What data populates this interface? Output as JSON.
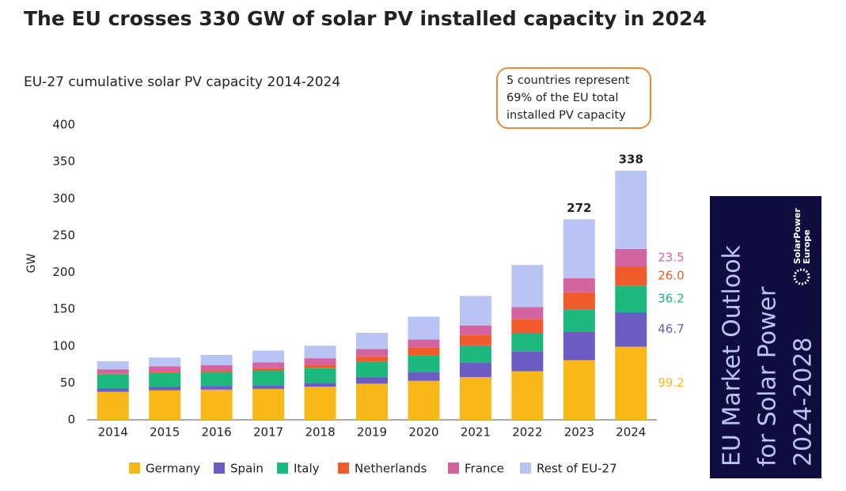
{
  "chart_data": {
    "type": "stacked_bar",
    "title": "The EU crosses 330 GW of solar PV installed capacity in 2024",
    "subtitle": "EU-27 cumulative solar PV capacity 2014-2024",
    "y_label": "GW",
    "annotation": [
      "5 countries represent",
      "69% of the EU total",
      "installed PV capacity"
    ],
    "categories": [
      "2014",
      "2015",
      "2016",
      "2017",
      "2018",
      "2019",
      "2020",
      "2021",
      "2022",
      "2023",
      "2024"
    ],
    "series": [
      {
        "name": "Germany",
        "color": "#f9b81a",
        "values": [
          38,
          40,
          41,
          42,
          45,
          49,
          53,
          58,
          66,
          81,
          99.2
        ],
        "value_labels": [
          null,
          null,
          null,
          null,
          null,
          null,
          null,
          null,
          null,
          null,
          "99.2"
        ]
      },
      {
        "name": "Spain",
        "color": "#6b5bc2",
        "values": [
          5,
          5,
          5,
          5,
          5,
          9,
          12,
          20,
          27,
          38,
          46.7
        ],
        "value_labels": [
          null,
          null,
          null,
          null,
          null,
          null,
          null,
          null,
          null,
          null,
          "46.7"
        ]
      },
      {
        "name": "Italy",
        "color": "#1db87e",
        "values": [
          18.5,
          19,
          19,
          20,
          20,
          21,
          22,
          23,
          25,
          31,
          36.2
        ],
        "value_labels": [
          null,
          null,
          null,
          null,
          null,
          null,
          null,
          null,
          null,
          null,
          "36.2"
        ]
      },
      {
        "name": "Netherlands",
        "color": "#f15a2b",
        "values": [
          1,
          1.5,
          2,
          3,
          4.5,
          7,
          11,
          14,
          19,
          23,
          26
        ],
        "value_labels": [
          null,
          null,
          null,
          null,
          null,
          null,
          null,
          null,
          null,
          null,
          "26.0"
        ]
      },
      {
        "name": "France",
        "color": "#d464a0",
        "values": [
          6,
          7,
          7,
          8,
          9,
          10,
          11,
          13,
          16,
          19,
          23.5
        ],
        "value_labels": [
          null,
          null,
          null,
          null,
          null,
          null,
          null,
          null,
          null,
          null,
          "23.5"
        ]
      },
      {
        "name": "Rest of EU-27",
        "color": "#b9c4f5",
        "values": [
          11,
          12,
          14,
          16,
          17,
          22,
          31,
          40,
          57,
          80,
          106.4
        ]
      }
    ],
    "total_labels": {
      "2023": 272,
      "2024": 338
    },
    "ylim": [
      0,
      400
    ],
    "yticks": [
      0,
      50,
      100,
      150,
      200,
      250,
      300,
      350,
      400
    ],
    "grid": false,
    "legend": "bottom"
  },
  "side_panel": {
    "lines": [
      "EU Market Outlook",
      "for Solar Power",
      "2024-2028"
    ],
    "logo": [
      "SolarPower",
      "Europe"
    ]
  }
}
